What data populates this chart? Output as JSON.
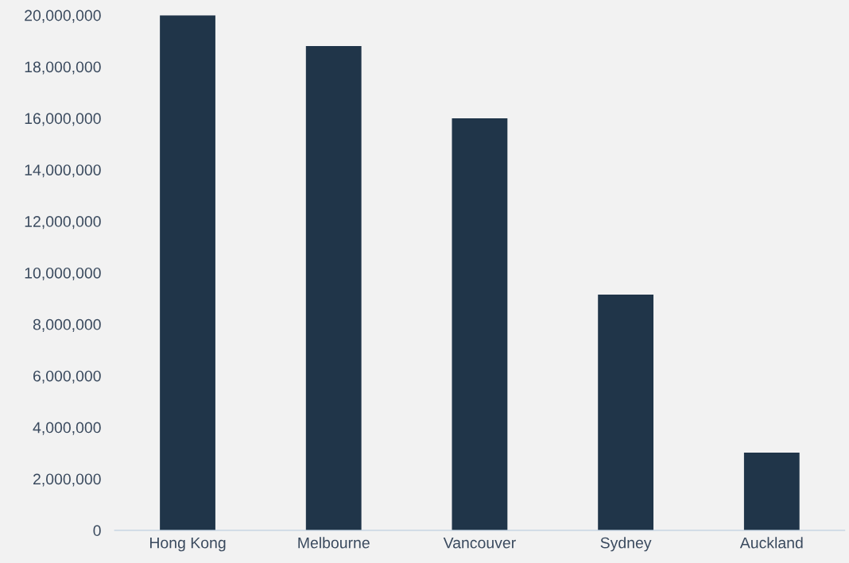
{
  "chart_data": {
    "type": "bar",
    "categories": [
      "Hong Kong",
      "Melbourne",
      "Vancouver",
      "Sydney",
      "Auckland"
    ],
    "values": [
      20000000,
      18800000,
      16000000,
      9150000,
      3020000
    ],
    "color": "#203549",
    "ylim": [
      0,
      20000000
    ],
    "yticks": [
      {
        "value": 0,
        "label": "0"
      },
      {
        "value": 2000000,
        "label": "2,000,000"
      },
      {
        "value": 4000000,
        "label": "4,000,000"
      },
      {
        "value": 6000000,
        "label": "6,000,000"
      },
      {
        "value": 8000000,
        "label": "8,000,000"
      },
      {
        "value": 10000000,
        "label": "10,000,000"
      },
      {
        "value": 12000000,
        "label": "12,000,000"
      },
      {
        "value": 14000000,
        "label": "14,000,000"
      },
      {
        "value": 16000000,
        "label": "16,000,000"
      },
      {
        "value": 18000000,
        "label": "18,000,000"
      },
      {
        "value": 20000000,
        "label": "20,000,000"
      }
    ],
    "grid": false,
    "legend": false
  }
}
